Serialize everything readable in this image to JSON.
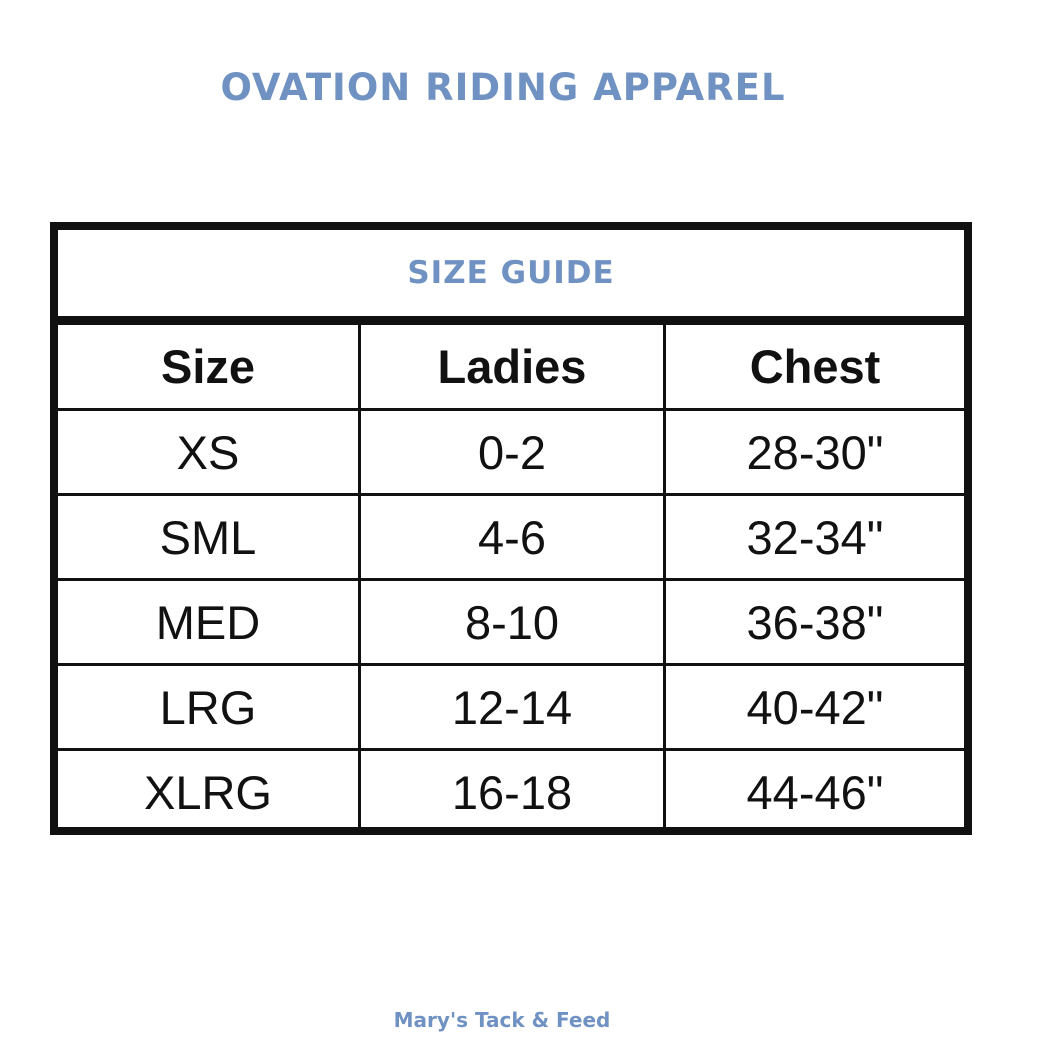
{
  "header": {
    "title": "OVATION RIDING APPAREL"
  },
  "table": {
    "title": "SIZE GUIDE",
    "columns": [
      "Size",
      "Ladies",
      "Chest"
    ],
    "rows": [
      [
        "XS",
        "0-2",
        "28-30\""
      ],
      [
        "SML",
        "4-6",
        "32-34\""
      ],
      [
        "MED",
        "8-10",
        "36-38\""
      ],
      [
        "LRG",
        "12-14",
        "40-42\""
      ],
      [
        "XLRG",
        "16-18",
        "44-46\""
      ]
    ]
  },
  "footer": {
    "text": "Mary's Tack & Feed"
  }
}
